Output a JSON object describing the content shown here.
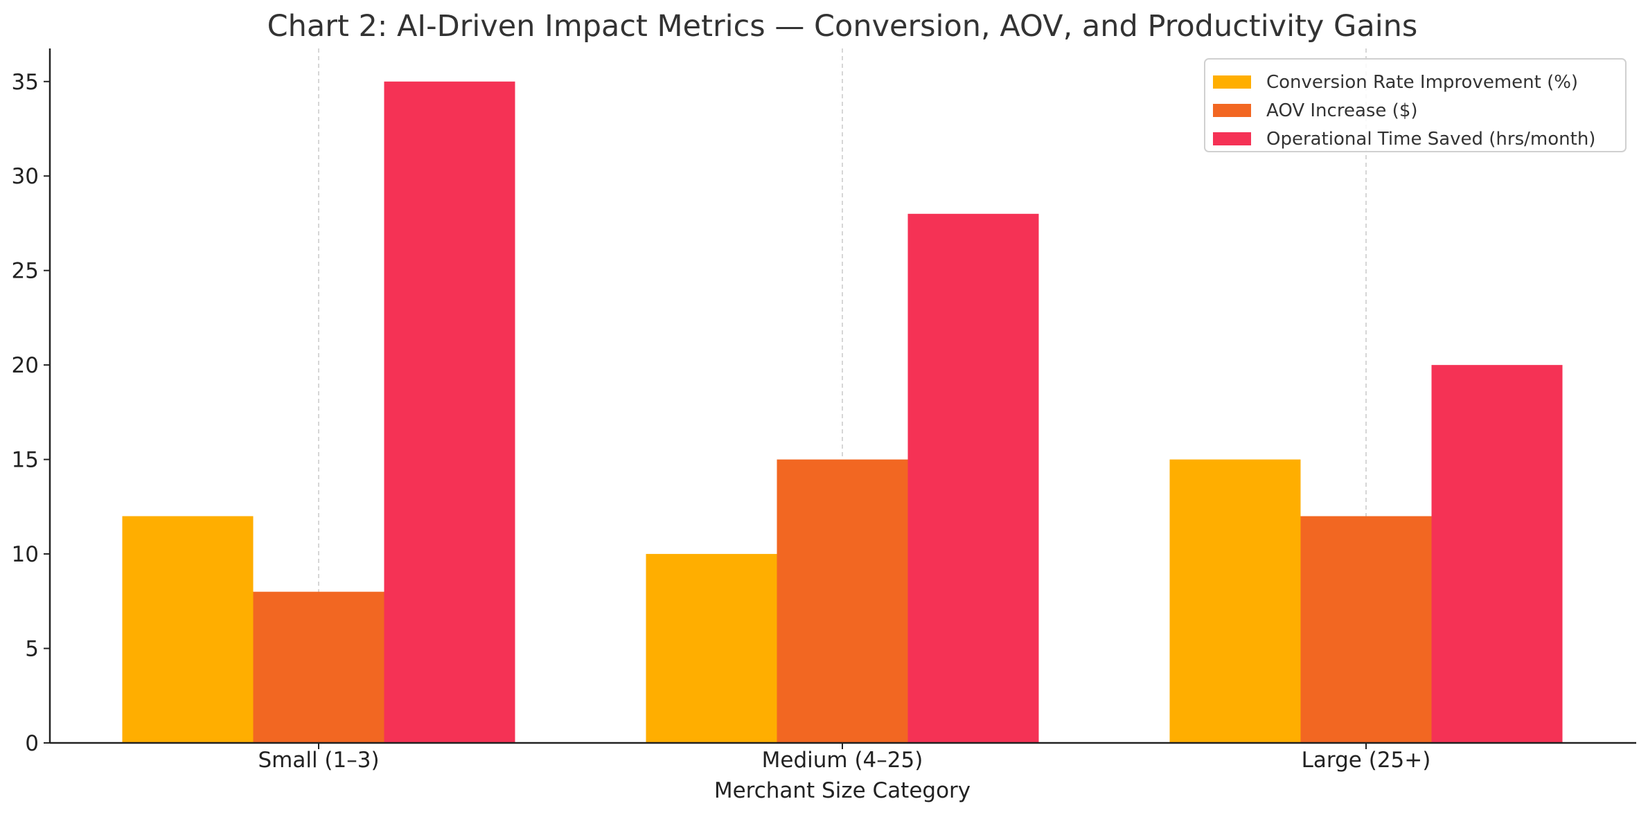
{
  "chart_data": {
    "type": "bar",
    "title": "Chart 2: AI-Driven Impact Metrics — Conversion, AOV, and Productivity Gains",
    "xlabel": "Merchant Size Category",
    "ylabel": "",
    "categories": [
      "Small (1–3)",
      "Medium (4–25)",
      "Large (25+)"
    ],
    "series": [
      {
        "name": "Conversion Rate Improvement (%)",
        "values": [
          12,
          10,
          15
        ],
        "color": "#FFAE00"
      },
      {
        "name": "AOV Increase ($)",
        "values": [
          8,
          15,
          12
        ],
        "color": "#F26722"
      },
      {
        "name": "Operational Time Saved (hrs/month)",
        "values": [
          35,
          28,
          20
        ],
        "color": "#F53255"
      }
    ],
    "ylim": [
      0,
      36.75
    ],
    "yticks": [
      0,
      5,
      10,
      15,
      20,
      25,
      30,
      35
    ],
    "grid": "vertical-dashed",
    "legend_position": "top-right"
  }
}
